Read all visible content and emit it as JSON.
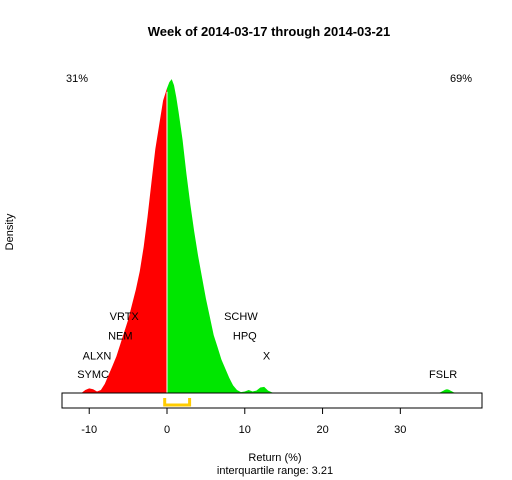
{
  "chart_data": {
    "type": "area",
    "title": "Week of 2014-03-17 through 2014-03-21",
    "xlabel": "Return (%)",
    "ylabel": "Density",
    "subtitle": "interquartile range: 3.21",
    "xlim": [
      -13.5,
      40.5
    ],
    "ylim": [
      0,
      1.06
    ],
    "xticks": [
      -10,
      0,
      10,
      20,
      30
    ],
    "split_at": 0,
    "negative_share": "31%",
    "positive_share": "69%",
    "colors": {
      "negative": "#ff0000",
      "positive": "#00e600",
      "iqr": "#ffcc00",
      "axis": "#000000",
      "baseline": "#aaaaaa"
    },
    "iqr_range": [
      -0.3,
      2.9
    ],
    "density": {
      "x": [
        -11,
        -10.5,
        -10,
        -9.5,
        -9,
        -8.5,
        -8,
        -7.5,
        -7,
        -6.5,
        -6,
        -5.5,
        -5,
        -4.5,
        -4,
        -3.5,
        -3,
        -2.5,
        -2,
        -1.5,
        -1,
        -0.5,
        0,
        0.3,
        0.6,
        0.9,
        1.2,
        1.5,
        2,
        2.5,
        3,
        3.5,
        4,
        4.5,
        5,
        5.5,
        6,
        6.5,
        7,
        7.5,
        8,
        8.5,
        9,
        9.5,
        10,
        10.5,
        11,
        11.5,
        12,
        12.5,
        13,
        13.5,
        14
      ],
      "y": [
        0,
        0.01,
        0.015,
        0.012,
        0.005,
        0.01,
        0.03,
        0.06,
        0.09,
        0.12,
        0.16,
        0.2,
        0.24,
        0.29,
        0.34,
        0.4,
        0.48,
        0.58,
        0.69,
        0.8,
        0.88,
        0.96,
        1.0,
        1.02,
        1.03,
        1.01,
        0.97,
        0.92,
        0.83,
        0.72,
        0.62,
        0.53,
        0.45,
        0.38,
        0.31,
        0.25,
        0.19,
        0.15,
        0.11,
        0.08,
        0.05,
        0.025,
        0.01,
        0.003,
        0.005,
        0.01,
        0.005,
        0.008,
        0.018,
        0.02,
        0.008,
        0.002,
        0
      ]
    },
    "outlier_bump": {
      "center": 36,
      "height": 0.012,
      "width": 1.2
    },
    "labels": [
      {
        "text": "VRTX",
        "x": -5.5,
        "y": 0.24
      },
      {
        "text": "NEM",
        "x": -6,
        "y": 0.175
      },
      {
        "text": "ALXN",
        "x": -9,
        "y": 0.11
      },
      {
        "text": "SYMC",
        "x": -9.5,
        "y": 0.05
      },
      {
        "text": "SCHW",
        "x": 9.5,
        "y": 0.24
      },
      {
        "text": "HPQ",
        "x": 10,
        "y": 0.175
      },
      {
        "text": "X",
        "x": 12.8,
        "y": 0.11
      },
      {
        "text": "FSLR",
        "x": 35.5,
        "y": 0.05
      }
    ]
  }
}
